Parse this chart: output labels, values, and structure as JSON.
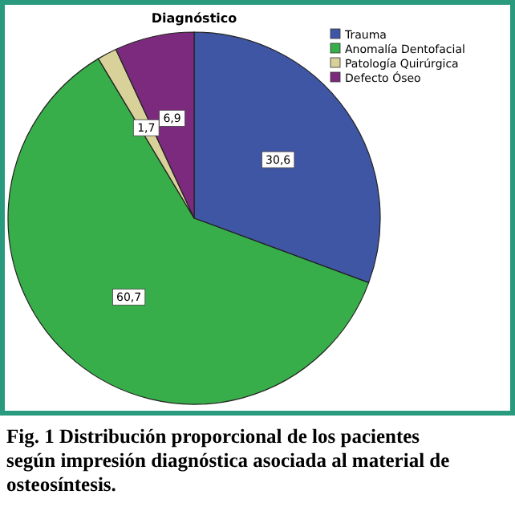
{
  "chart_data": {
    "type": "pie",
    "title": "Diagnóstico",
    "categories": [
      "Trauma",
      "Anomalía Dentofacial",
      "Patología Quirúrgica",
      "Defecto Óseo"
    ],
    "values": [
      30.6,
      60.7,
      1.7,
      6.9
    ],
    "value_labels": [
      "30,6",
      "60,7",
      "1,7",
      "6,9"
    ],
    "colors": [
      "#3f56a5",
      "#37ae4a",
      "#d8d19a",
      "#7c2a7e"
    ],
    "legend": "top right",
    "annotations": [
      "Fig. 1 Distribución proporcional de los pacientes según impresión diagnóstica asociada al material de osteosíntesis."
    ]
  }
}
